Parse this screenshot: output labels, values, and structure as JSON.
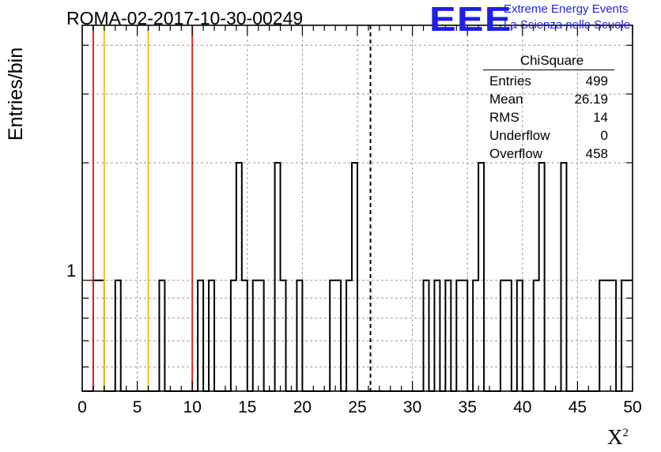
{
  "title": "ROMA-02-2017-10-30-00249",
  "logo": {
    "mark": "EEE",
    "line1": "Extreme Energy Events",
    "line2": "La Scienza nelle Scuole",
    "color": "#1f1fe6"
  },
  "stats_box": {
    "title": "ChiSquare",
    "rows": [
      {
        "label": "Entries",
        "value": "499"
      },
      {
        "label": "Mean",
        "value": "26.19"
      },
      {
        "label": "RMS",
        "value": "14"
      },
      {
        "label": "Underflow",
        "value": "0"
      },
      {
        "label": "Overflow",
        "value": "458"
      }
    ]
  },
  "chart_data": {
    "type": "bar",
    "title": "ROMA-02-2017-10-30-00249",
    "xlabel": "X",
    "xlabel_superscript": "2",
    "ylabel": "Entries/bin",
    "xlim": [
      0,
      50
    ],
    "ylim": [
      0.52,
      4.5
    ],
    "y_scale": "log",
    "x_ticks": [
      "0",
      "5",
      "10",
      "15",
      "20",
      "25",
      "30",
      "35",
      "40",
      "45",
      "50"
    ],
    "y_tick_labels": [
      "1"
    ],
    "grid": true,
    "bin_width": 0.5,
    "counts": [
      0,
      0,
      1,
      1,
      0,
      0,
      1,
      0,
      0,
      0,
      0,
      0,
      0,
      0,
      1,
      0,
      0,
      0,
      0,
      0,
      0,
      1,
      0,
      1,
      0,
      0,
      0,
      1,
      2,
      1,
      0,
      1,
      1,
      0,
      0,
      2,
      1,
      0,
      0,
      1,
      0,
      0,
      0,
      0,
      0,
      1,
      1,
      0,
      1,
      2,
      0,
      0,
      0,
      0,
      0,
      0,
      0,
      0,
      0,
      0,
      0,
      0,
      1,
      0,
      1,
      0,
      1,
      0,
      1,
      1,
      0,
      1,
      2,
      0,
      0,
      0,
      1,
      1,
      0,
      1,
      0,
      0,
      1,
      2,
      0,
      0,
      0,
      2,
      0,
      0,
      0,
      0,
      0,
      0,
      1,
      1,
      1,
      0,
      1,
      1
    ],
    "bins": [
      {
        "x": 1.0,
        "count": 1
      },
      {
        "x": 1.5,
        "count": 1
      },
      {
        "x": 3.0,
        "count": 1
      },
      {
        "x": 7.0,
        "count": 1
      },
      {
        "x": 10.5,
        "count": 1
      },
      {
        "x": 11.5,
        "count": 1
      },
      {
        "x": 13.5,
        "count": 1
      },
      {
        "x": 14.0,
        "count": 2
      },
      {
        "x": 14.5,
        "count": 1
      },
      {
        "x": 15.5,
        "count": 1
      },
      {
        "x": 16.0,
        "count": 1
      },
      {
        "x": 17.5,
        "count": 2
      },
      {
        "x": 18.0,
        "count": 1
      },
      {
        "x": 19.5,
        "count": 1
      },
      {
        "x": 22.5,
        "count": 1
      },
      {
        "x": 23.0,
        "count": 1
      },
      {
        "x": 24.0,
        "count": 1
      },
      {
        "x": 24.5,
        "count": 2
      },
      {
        "x": 31.0,
        "count": 1
      },
      {
        "x": 32.0,
        "count": 1
      },
      {
        "x": 33.0,
        "count": 1
      },
      {
        "x": 34.0,
        "count": 1
      },
      {
        "x": 34.5,
        "count": 1
      },
      {
        "x": 35.5,
        "count": 1
      },
      {
        "x": 36.0,
        "count": 2
      },
      {
        "x": 38.0,
        "count": 1
      },
      {
        "x": 38.5,
        "count": 1
      },
      {
        "x": 39.5,
        "count": 1
      },
      {
        "x": 41.0,
        "count": 1
      },
      {
        "x": 41.5,
        "count": 2
      },
      {
        "x": 43.5,
        "count": 2
      },
      {
        "x": 47.0,
        "count": 1
      },
      {
        "x": 47.5,
        "count": 1
      },
      {
        "x": 48.0,
        "count": 1
      },
      {
        "x": 49.0,
        "count": 1
      },
      {
        "x": 49.5,
        "count": 1
      }
    ],
    "reference_lines": [
      {
        "x": 1.0,
        "color": "#e3261a",
        "style": "solid"
      },
      {
        "x": 2.0,
        "color": "#f2c419",
        "style": "solid"
      },
      {
        "x": 6.0,
        "color": "#f2c419",
        "style": "solid"
      },
      {
        "x": 10.0,
        "color": "#e3261a",
        "style": "solid"
      },
      {
        "x": 26.19,
        "color": "#000000",
        "style": "dashed"
      }
    ]
  }
}
